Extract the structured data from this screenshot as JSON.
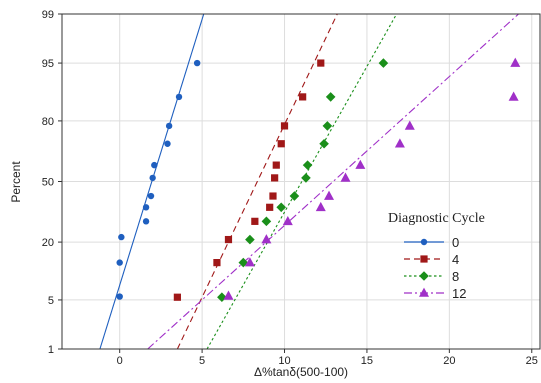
{
  "chart_data": {
    "type": "scatter",
    "title": "",
    "xlabel": "Δ%tanδ(500-100)",
    "ylabel": "Percent",
    "xlim": [
      -3.5,
      25.5
    ],
    "x_ticks": [
      0,
      5,
      10,
      15,
      20,
      25
    ],
    "y_scale": "probability",
    "y_ticks": [
      1,
      5,
      20,
      50,
      80,
      95,
      99
    ],
    "grid": true,
    "legend": {
      "title": "Diagnostic Cycle",
      "position": "right"
    },
    "series": [
      {
        "name": "0",
        "color": "#1f5fbf",
        "marker": "circle",
        "line": "solid",
        "points": [
          [
            0.0,
            5.5
          ],
          [
            0.0,
            13
          ],
          [
            0.1,
            22
          ],
          [
            1.6,
            29
          ],
          [
            1.6,
            36
          ],
          [
            1.9,
            42
          ],
          [
            2.0,
            52
          ],
          [
            2.1,
            59
          ],
          [
            2.9,
            70
          ],
          [
            3.0,
            78
          ],
          [
            3.6,
            88
          ],
          [
            4.7,
            95
          ]
        ],
        "fit": [
          [
            -1.2,
            1
          ],
          [
            5.1,
            99
          ]
        ]
      },
      {
        "name": "4",
        "color": "#a01818",
        "marker": "square",
        "line": "dashed",
        "points": [
          [
            3.5,
            5.4
          ],
          [
            5.9,
            13
          ],
          [
            6.6,
            21
          ],
          [
            8.2,
            29
          ],
          [
            9.1,
            36
          ],
          [
            9.3,
            42
          ],
          [
            9.4,
            52
          ],
          [
            9.5,
            59
          ],
          [
            9.8,
            70
          ],
          [
            10.0,
            78
          ],
          [
            11.1,
            88
          ],
          [
            12.2,
            95
          ]
        ],
        "fit": [
          [
            3.5,
            1
          ],
          [
            13.2,
            99
          ]
        ]
      },
      {
        "name": "8",
        "color": "#1a8f1a",
        "marker": "diamond",
        "line": "dotted",
        "points": [
          [
            6.2,
            5.4
          ],
          [
            7.5,
            13
          ],
          [
            7.9,
            21
          ],
          [
            8.9,
            29
          ],
          [
            9.8,
            36
          ],
          [
            10.6,
            42
          ],
          [
            11.3,
            52
          ],
          [
            11.4,
            59
          ],
          [
            12.4,
            70
          ],
          [
            12.6,
            78
          ],
          [
            12.8,
            88
          ],
          [
            16.0,
            95
          ]
        ],
        "fit": [
          [
            5.3,
            1
          ],
          [
            16.8,
            99
          ]
        ]
      },
      {
        "name": "12",
        "color": "#a030c8",
        "marker": "triangle",
        "line": "dashdot",
        "points": [
          [
            6.6,
            5.6
          ],
          [
            7.9,
            13
          ],
          [
            8.9,
            21
          ],
          [
            10.2,
            29
          ],
          [
            12.2,
            36
          ],
          [
            12.7,
            42
          ],
          [
            13.7,
            52
          ],
          [
            14.6,
            59
          ],
          [
            17.0,
            70
          ],
          [
            17.6,
            78
          ],
          [
            23.9,
            88
          ],
          [
            24.0,
            95
          ]
        ],
        "fit": [
          [
            1.7,
            1
          ],
          [
            24.2,
            99
          ]
        ]
      }
    ]
  }
}
